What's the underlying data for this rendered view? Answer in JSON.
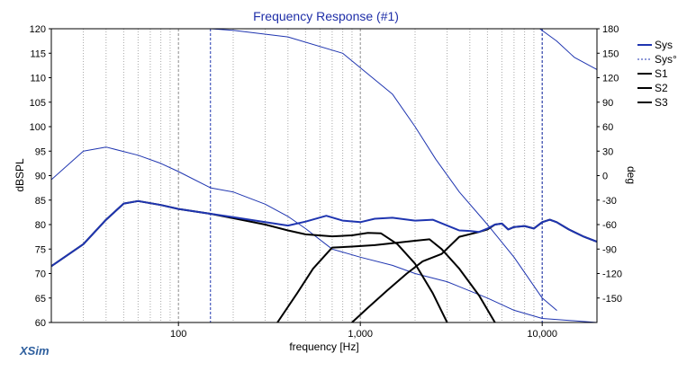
{
  "chart_data": {
    "type": "line",
    "title": "Frequency Response (#1)",
    "xlabel": "frequency [Hz]",
    "ylabel": "dBSPL",
    "y2label": "deg",
    "xscale": "log",
    "xlim": [
      20,
      20000
    ],
    "ylim": [
      60,
      120
    ],
    "y2lim": [
      -180,
      180
    ],
    "x_tick_labels": [
      {
        "value": 100,
        "label": "100"
      },
      {
        "value": 1000,
        "label": "1,000"
      },
      {
        "value": 10000,
        "label": "10,000"
      }
    ],
    "y_ticks": [
      60,
      65,
      70,
      75,
      80,
      85,
      90,
      95,
      100,
      105,
      110,
      115,
      120
    ],
    "y2_ticks": [
      -150,
      -120,
      -90,
      -60,
      -30,
      0,
      30,
      60,
      90,
      120,
      150,
      180
    ],
    "grid": true,
    "legend_position": "right",
    "series": [
      {
        "name": "Sys",
        "axis": "left",
        "color": "#1f35b0",
        "width": 2,
        "dash": "none",
        "points": [
          [
            20,
            71.5
          ],
          [
            30,
            76
          ],
          [
            40,
            81
          ],
          [
            50,
            84.3
          ],
          [
            60,
            84.8
          ],
          [
            80,
            84
          ],
          [
            100,
            83.2
          ],
          [
            150,
            82.2
          ],
          [
            200,
            81.5
          ],
          [
            300,
            80.5
          ],
          [
            400,
            79.8
          ],
          [
            500,
            80.6
          ],
          [
            650,
            81.8
          ],
          [
            800,
            80.8
          ],
          [
            1000,
            80.5
          ],
          [
            1200,
            81.2
          ],
          [
            1500,
            81.4
          ],
          [
            2000,
            80.8
          ],
          [
            2500,
            81
          ],
          [
            3000,
            79.8
          ],
          [
            3500,
            78.8
          ],
          [
            4000,
            78.7
          ],
          [
            4500,
            78.5
          ],
          [
            5000,
            79.2
          ],
          [
            5500,
            80
          ],
          [
            6000,
            80.2
          ],
          [
            6500,
            79
          ],
          [
            7000,
            79.5
          ],
          [
            8000,
            79.7
          ],
          [
            9000,
            79.2
          ],
          [
            10000,
            80.5
          ],
          [
            11000,
            81
          ],
          [
            12000,
            80.5
          ],
          [
            14000,
            79
          ],
          [
            17000,
            77.5
          ],
          [
            20000,
            76.5
          ]
        ]
      },
      {
        "name": "Sys°",
        "axis": "right",
        "color": "#1f35b0",
        "width": 1,
        "dash": "dotted",
        "segments": [
          [
            [
              20,
              -5
            ],
            [
              30,
              30
            ],
            [
              40,
              35
            ],
            [
              60,
              25
            ],
            [
              80,
              15
            ],
            [
              100,
              5
            ],
            [
              150,
              -15
            ],
            [
              200,
              -20
            ],
            [
              300,
              -35
            ],
            [
              400,
              -50
            ],
            [
              500,
              -65
            ],
            [
              700,
              -90
            ],
            [
              1000,
              -100
            ],
            [
              1500,
              -110
            ],
            [
              2000,
              -120
            ],
            [
              3000,
              -130
            ],
            [
              5000,
              -150
            ],
            [
              7000,
              -165
            ],
            [
              10000,
              -175
            ],
            [
              20000,
              -180
            ]
          ],
          [
            [
              150,
              180
            ],
            [
              200,
              178
            ],
            [
              400,
              170
            ],
            [
              800,
              150
            ],
            [
              1500,
              100
            ],
            [
              2000,
              60
            ],
            [
              2600,
              20
            ],
            [
              3500,
              -20
            ],
            [
              5000,
              -60
            ],
            [
              7000,
              -100
            ],
            [
              10000,
              -150
            ],
            [
              12000,
              -165
            ]
          ],
          [
            [
              9700,
              180
            ],
            [
              12000,
              165
            ],
            [
              15000,
              145
            ],
            [
              20000,
              130
            ]
          ]
        ]
      },
      {
        "name": "S1",
        "axis": "left",
        "color": "#000000",
        "width": 2,
        "dash": "none",
        "points": [
          [
            20,
            71.5
          ],
          [
            30,
            76
          ],
          [
            40,
            81
          ],
          [
            50,
            84.3
          ],
          [
            60,
            84.8
          ],
          [
            80,
            84
          ],
          [
            100,
            83.2
          ],
          [
            150,
            82.2
          ],
          [
            200,
            81.3
          ],
          [
            300,
            80
          ],
          [
            400,
            78.8
          ],
          [
            500,
            78
          ],
          [
            700,
            77.6
          ],
          [
            900,
            77.8
          ],
          [
            1100,
            78.3
          ],
          [
            1300,
            78.2
          ],
          [
            1600,
            76
          ],
          [
            2000,
            72
          ],
          [
            2500,
            66
          ],
          [
            3000,
            60
          ]
        ]
      },
      {
        "name": "S2",
        "axis": "left",
        "color": "#000000",
        "width": 2,
        "dash": "none",
        "points": [
          [
            350,
            60
          ],
          [
            450,
            66
          ],
          [
            550,
            71
          ],
          [
            700,
            75.3
          ],
          [
            900,
            75.5
          ],
          [
            1200,
            75.8
          ],
          [
            1500,
            76.2
          ],
          [
            2000,
            76.7
          ],
          [
            2400,
            77
          ],
          [
            2800,
            75
          ],
          [
            3500,
            71
          ],
          [
            4500,
            65.5
          ],
          [
            5500,
            60
          ]
        ]
      },
      {
        "name": "S3",
        "axis": "left",
        "color": "#000000",
        "width": 2,
        "dash": "none",
        "points": [
          [
            900,
            60
          ],
          [
            1100,
            63
          ],
          [
            1400,
            66.5
          ],
          [
            1800,
            70
          ],
          [
            2200,
            72.5
          ],
          [
            2800,
            74
          ],
          [
            3500,
            77.5
          ],
          [
            4500,
            78.5
          ],
          [
            5000,
            79
          ],
          [
            5500,
            80
          ],
          [
            6000,
            80.2
          ],
          [
            6500,
            79
          ],
          [
            7000,
            79.5
          ],
          [
            8000,
            79.7
          ],
          [
            9000,
            79.2
          ],
          [
            10000,
            80.5
          ],
          [
            11000,
            81
          ],
          [
            12000,
            80.5
          ],
          [
            14000,
            79
          ],
          [
            17000,
            77.5
          ],
          [
            20000,
            76.5
          ]
        ]
      }
    ]
  },
  "branding": {
    "app_name": "XSim"
  }
}
